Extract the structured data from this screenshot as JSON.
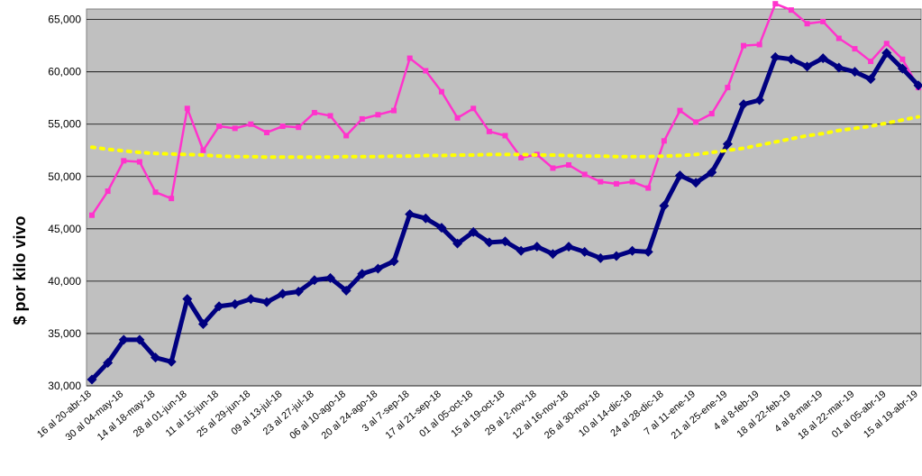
{
  "chart_data": {
    "type": "line",
    "title": "",
    "xlabel": "",
    "ylabel": "$ por kilo vivo",
    "ylim": [
      30000,
      66000
    ],
    "yticks": [
      "30,000",
      "35,000",
      "40,000",
      "45,000",
      "50,000",
      "55,000",
      "60,000",
      "65,000"
    ],
    "ytick_values": [
      30000,
      35000,
      40000,
      45000,
      50000,
      55000,
      60000,
      65000
    ],
    "grid": true,
    "legend": "none",
    "plot_background": "#c0c0c0",
    "x_labels": [
      "16 al 20-abr-18",
      "30 al 04-may-18",
      "14 al 18-may-18",
      "28 al 01-jun-18",
      "11 al 15-jun-18",
      "25 al 29-jun-18",
      "09 al 13-jul-18",
      "23 al 27-jul-18",
      "06 al 10-ago-18",
      "20 al 24-ago-18",
      "3 al 7-sep-18",
      "17 al 21-sep-18",
      "01 al 05-oct-18",
      "15 al 19-oct-18",
      "29 al 2-nov-18",
      "12 al 16-nov-18",
      "26 al 30-nov-18",
      "10 al 14-dic-18",
      "24 al 28-dic-18",
      "7 al 11-ene-19",
      "21 al 25-ene-19",
      "4 al 8-feb-19",
      "18 al 22-feb-19",
      "4 al 8-mar-19",
      "18 al 22-mar-19",
      "01 al 05-abr-19",
      "15 al 19-abr-19"
    ],
    "series": [
      {
        "color": "#ff33cc",
        "style": "line-square-markers",
        "values": [
          46300,
          48600,
          51500,
          51400,
          48500,
          47900,
          56500,
          52500,
          54800,
          54600,
          55000,
          54200,
          54800,
          54700,
          56100,
          55800,
          53900,
          55500,
          55900,
          56300,
          61300,
          60100,
          58100,
          55600,
          56500,
          54300,
          53900,
          51800,
          52100,
          50800,
          51100,
          50200,
          49500,
          49300,
          49500,
          48900,
          53400,
          56300,
          55200,
          56000,
          58500,
          62500,
          62600,
          66500,
          65900,
          64600,
          64800,
          63200,
          62200,
          61000,
          62700,
          61200,
          58500
        ]
      },
      {
        "color": "#000080",
        "style": "line-diamond-markers",
        "values": [
          30600,
          32200,
          34400,
          34400,
          32700,
          32300,
          38300,
          35900,
          37600,
          37800,
          38300,
          38000,
          38800,
          39000,
          40100,
          40300,
          39100,
          40700,
          41200,
          41900,
          46400,
          46000,
          45100,
          43600,
          44700,
          43700,
          43800,
          42900,
          43300,
          42600,
          43300,
          42800,
          42200,
          42400,
          42900,
          42800,
          47200,
          50100,
          49400,
          50400,
          53100,
          56900,
          57300,
          61400,
          61200,
          60500,
          61300,
          60400,
          60000,
          59300,
          61800,
          60300,
          58700
        ]
      },
      {
        "color": "#ffff00",
        "style": "dotted-trend",
        "values": [
          52800,
          52600,
          52450,
          52300,
          52200,
          52150,
          52100,
          52050,
          51950,
          51900,
          51900,
          51850,
          51850,
          51850,
          51850,
          51850,
          51900,
          51900,
          51900,
          51950,
          51950,
          52000,
          52000,
          52050,
          52050,
          52100,
          52100,
          52100,
          52050,
          52050,
          52000,
          51950,
          51950,
          51900,
          51900,
          51900,
          51950,
          52000,
          52100,
          52300,
          52500,
          52700,
          53000,
          53300,
          53600,
          53900,
          54100,
          54400,
          54600,
          54800,
          55100,
          55400,
          55700
        ]
      }
    ]
  }
}
